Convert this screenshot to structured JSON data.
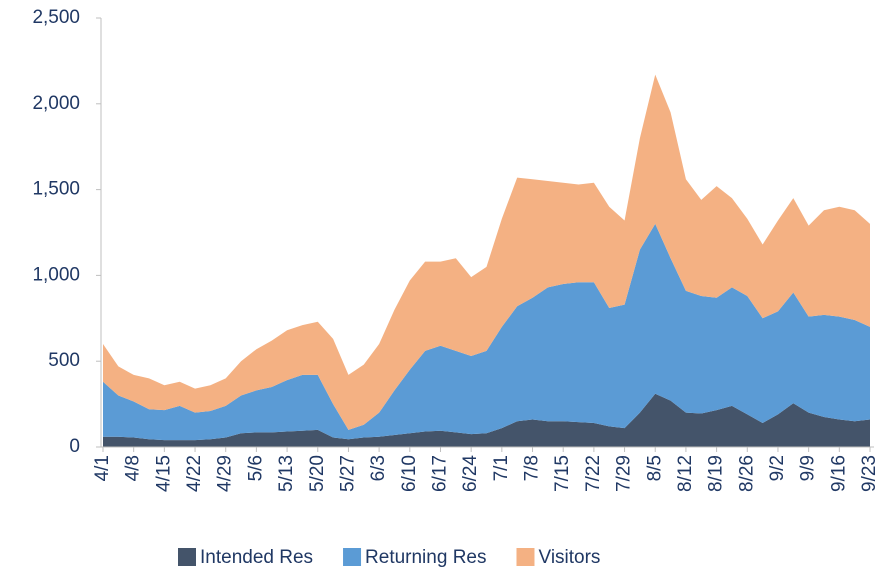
{
  "chart_data": {
    "type": "stacked_area",
    "categories": [
      "4/1",
      null,
      "4/8",
      null,
      "4/15",
      null,
      "4/22",
      null,
      "4/29",
      null,
      "5/6",
      null,
      "5/13",
      null,
      "5/20",
      null,
      "5/27",
      null,
      "6/3",
      null,
      "6/10",
      null,
      "6/17",
      null,
      "6/24",
      null,
      "7/1",
      null,
      "7/8",
      null,
      "7/15",
      null,
      "7/22",
      null,
      "7/29",
      null,
      "8/5",
      null,
      "8/12",
      null,
      "8/19",
      null,
      "8/26",
      null,
      "9/2",
      null,
      "9/9",
      null,
      "9/16",
      null,
      "9/23"
    ],
    "series": [
      {
        "name": "Intended Res",
        "color": "#44546a",
        "values": [
          60,
          60,
          55,
          45,
          40,
          40,
          40,
          45,
          55,
          80,
          85,
          85,
          90,
          95,
          100,
          55,
          45,
          55,
          60,
          70,
          80,
          90,
          95,
          85,
          75,
          80,
          110,
          150,
          160,
          150,
          150,
          145,
          140,
          120,
          110,
          200,
          310,
          270,
          200,
          195,
          215,
          240,
          190,
          140,
          190,
          255,
          200,
          175,
          160,
          150,
          160
        ]
      },
      {
        "name": "Returning Res",
        "color": "#5b9bd5",
        "values": [
          320,
          240,
          210,
          175,
          175,
          200,
          160,
          165,
          185,
          220,
          245,
          265,
          300,
          325,
          320,
          195,
          55,
          75,
          140,
          260,
          370,
          470,
          495,
          475,
          455,
          480,
          590,
          670,
          710,
          780,
          800,
          815,
          820,
          690,
          720,
          950,
          990,
          830,
          710,
          685,
          655,
          690,
          690,
          610,
          600,
          645,
          560,
          595,
          600,
          590,
          540
        ]
      },
      {
        "name": "Visitors",
        "color": "#f4b183",
        "values": [
          220,
          170,
          155,
          180,
          145,
          140,
          140,
          150,
          160,
          200,
          240,
          270,
          290,
          290,
          310,
          380,
          320,
          350,
          400,
          470,
          520,
          520,
          490,
          540,
          460,
          490,
          630,
          750,
          690,
          620,
          590,
          570,
          580,
          590,
          490,
          650,
          870,
          850,
          650,
          560,
          650,
          520,
          450,
          430,
          530,
          550,
          530,
          610,
          640,
          640,
          600
        ]
      }
    ],
    "ylim": [
      0,
      2500
    ],
    "yticks": [
      0,
      500,
      {
        "value": 1000,
        "label": "1,000"
      },
      {
        "value": 1500,
        "label": "1,500"
      },
      {
        "value": 2000,
        "label": "2,000"
      },
      {
        "value": 2500,
        "label": "2,500"
      }
    ],
    "legend": "bottom"
  }
}
